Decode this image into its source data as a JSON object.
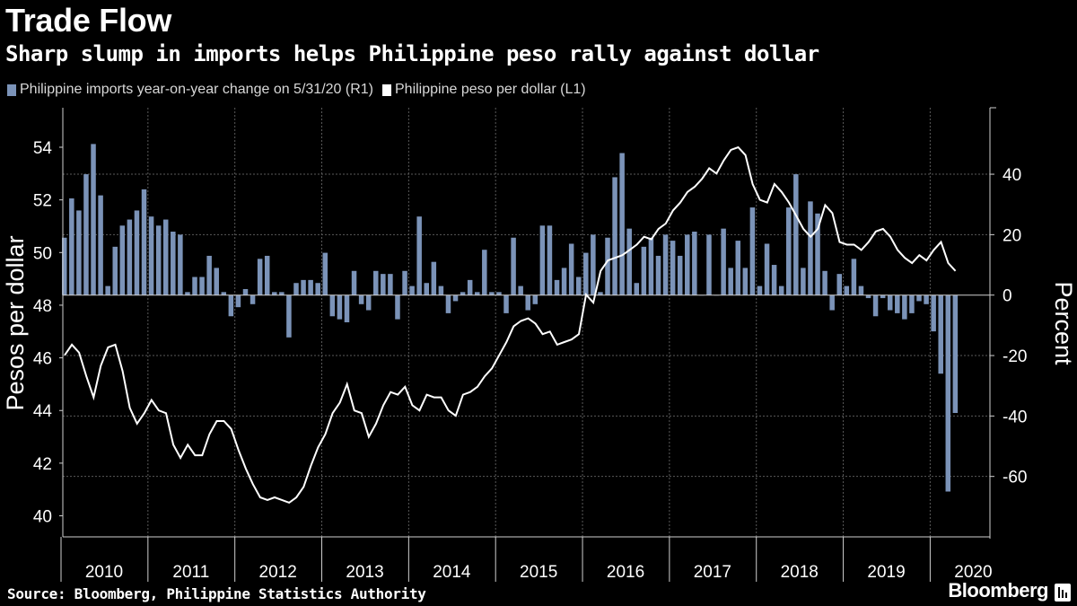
{
  "title": "Trade Flow",
  "subtitle": "Sharp slump in imports helps Philippine peso rally against dollar",
  "legend": {
    "imports": "Philippine imports year-on-year change on 5/31/20 (R1)",
    "peso": "Philippine peso per dollar (L1)"
  },
  "colors": {
    "background": "#000000",
    "bars": "#7b93b8",
    "line": "#ffffff",
    "grid": "#5a5a5a"
  },
  "footer": {
    "source": "Source: Bloomberg, Philippine Statistics Authority",
    "brand": "Bloomberg",
    "brand_icon": "bloomberg-terminal-icon"
  },
  "chart_data": {
    "type": "bar",
    "ylabel_left": "Pesos per dollar",
    "ylabel_right": "Percent",
    "left_axis": {
      "ticks": [
        40,
        42,
        44,
        46,
        48,
        50,
        52,
        54
      ],
      "ylim": [
        39.2,
        55.5
      ]
    },
    "right_axis": {
      "ticks": [
        -60,
        -40,
        -20,
        0,
        20,
        40
      ],
      "ylim": [
        -80,
        62
      ]
    },
    "x_ticks": [
      "2010",
      "2011",
      "2012",
      "2013",
      "2014",
      "2015",
      "2016",
      "2017",
      "2018",
      "2019",
      "2020"
    ],
    "grid": true,
    "legend_placement": "top-left",
    "series": [
      {
        "name": "Philippine imports year-on-year change on 5/31/20 (R1)",
        "kind": "bar",
        "axis": "right",
        "start": "2010-01",
        "frequency": "monthly",
        "values": [
          19,
          32,
          28,
          40,
          50,
          33,
          3,
          16,
          23,
          25,
          28,
          35,
          26,
          23,
          25,
          21,
          20,
          1,
          6,
          6,
          13,
          9,
          1,
          -7,
          -4,
          2,
          -3,
          12,
          13,
          1,
          1,
          -14,
          4,
          5,
          5,
          4,
          14,
          -7,
          -8,
          -9,
          8,
          -3,
          -5,
          8,
          7,
          7,
          -8,
          8,
          3,
          26,
          4,
          11,
          3,
          -6,
          -2,
          1,
          5,
          1,
          15,
          1,
          1,
          -6,
          19,
          3,
          -5,
          -3,
          23,
          23,
          5,
          9,
          17,
          6,
          14,
          20,
          1,
          19,
          39,
          47,
          22,
          4,
          16,
          19,
          13,
          20,
          18,
          13,
          20,
          21,
          0,
          20,
          0,
          22,
          9,
          18,
          9,
          29,
          3,
          17,
          10,
          3,
          29,
          40,
          9,
          31,
          27,
          8,
          -5,
          7,
          3,
          12,
          3,
          -1,
          -7,
          -1,
          -5,
          -6,
          -8,
          -6,
          -2,
          -3,
          -12,
          -26,
          -65,
          -39
        ]
      },
      {
        "name": "Philippine peso per dollar (L1)",
        "kind": "line",
        "axis": "left",
        "start": "2010-01",
        "frequency": "monthly",
        "values": [
          46.1,
          46.5,
          46.2,
          45.3,
          44.5,
          45.7,
          46.4,
          46.5,
          45.5,
          44.1,
          43.5,
          43.9,
          44.4,
          44.0,
          43.9,
          42.7,
          42.2,
          42.7,
          42.3,
          42.3,
          43.1,
          43.6,
          43.6,
          43.3,
          42.5,
          41.8,
          41.2,
          40.7,
          40.6,
          40.7,
          40.6,
          40.5,
          40.7,
          41.1,
          41.9,
          42.6,
          43.1,
          43.9,
          44.3,
          45.0,
          44.0,
          43.9,
          43.0,
          43.5,
          44.2,
          44.7,
          44.6,
          44.9,
          44.2,
          44.0,
          44.6,
          44.5,
          44.5,
          44.0,
          43.8,
          44.6,
          44.7,
          44.9,
          45.3,
          45.6,
          46.1,
          46.6,
          47.2,
          47.4,
          47.5,
          47.3,
          46.9,
          47.0,
          46.5,
          46.6,
          46.7,
          46.9,
          48.4,
          48.1,
          49.3,
          49.7,
          49.8,
          49.9,
          50.1,
          50.3,
          50.6,
          50.5,
          50.9,
          51.1,
          51.6,
          51.9,
          52.3,
          52.5,
          52.8,
          53.2,
          53.0,
          53.5,
          53.9,
          54.0,
          53.7,
          52.6,
          52.0,
          51.9,
          52.6,
          52.3,
          51.9,
          51.4,
          50.9,
          50.6,
          50.9,
          51.8,
          51.5,
          50.4,
          50.3,
          50.3,
          50.1,
          50.4,
          50.8,
          50.9,
          50.6,
          50.1,
          49.8,
          49.6,
          49.9,
          49.7,
          50.1,
          50.4,
          49.6,
          49.3
        ]
      }
    ]
  }
}
